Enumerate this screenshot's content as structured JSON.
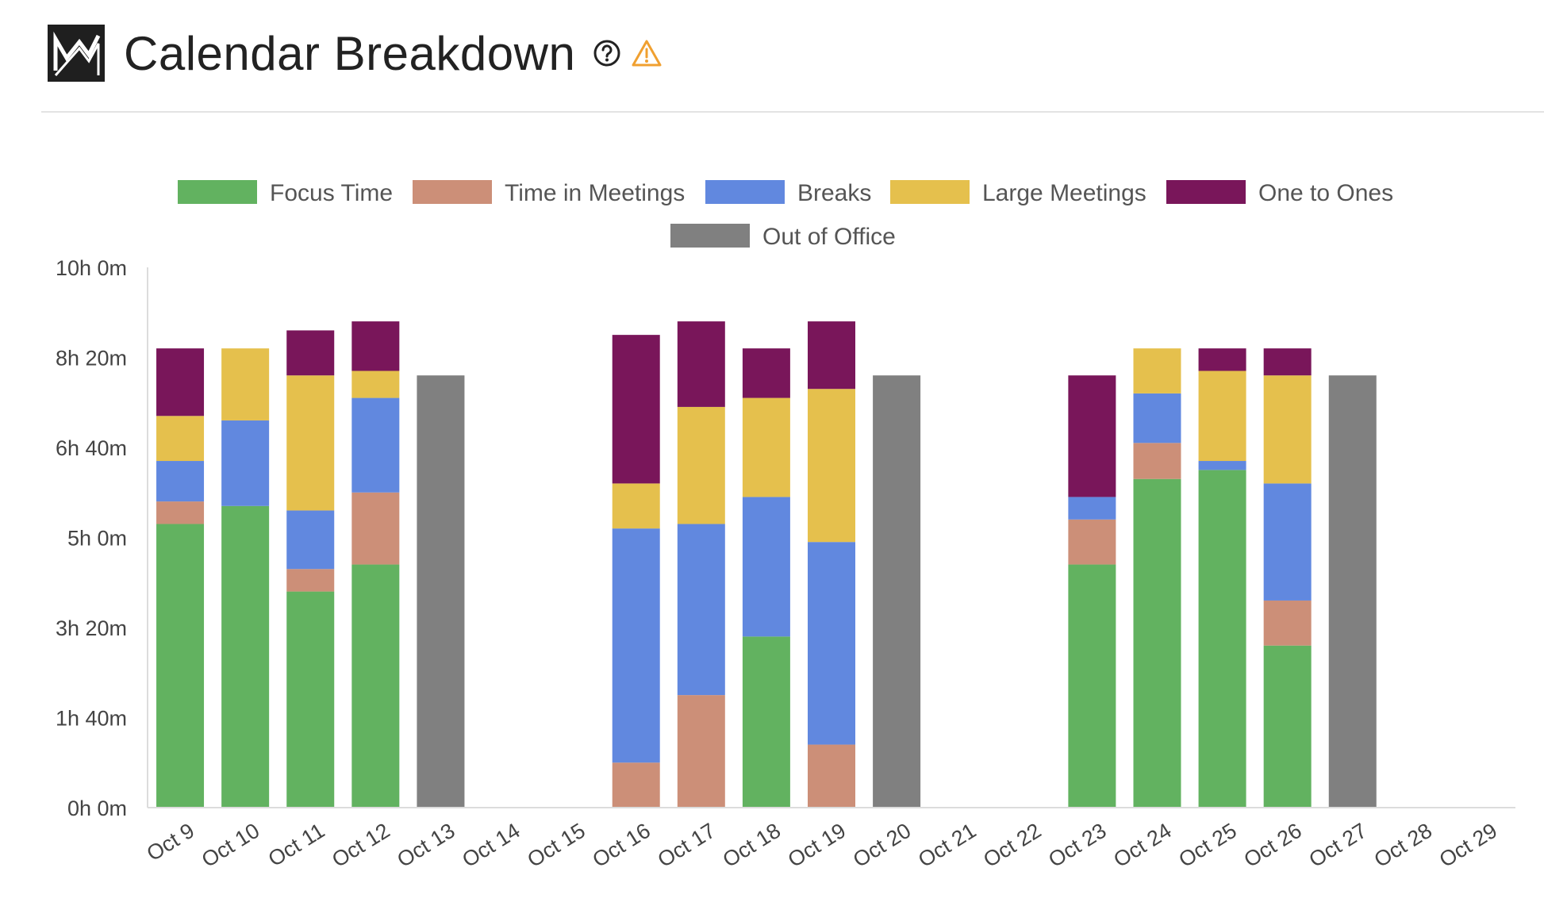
{
  "header": {
    "title": "Calendar Breakdown",
    "logo_icon": "line-chart-icon",
    "help_icon": "help-circle-icon",
    "warning_icon": "warning-triangle-icon",
    "warning_color": "#f0a030"
  },
  "chart_data": {
    "type": "bar",
    "stacked": true,
    "title": "Calendar Breakdown",
    "xlabel": "",
    "ylabel": "",
    "ylim_minutes": [
      0,
      600
    ],
    "y_ticks": [
      "0h 0m",
      "1h 40m",
      "3h 20m",
      "5h 0m",
      "6h 40m",
      "8h 20m",
      "10h 0m"
    ],
    "legend_position": "top",
    "grid": false,
    "categories": [
      "Oct 9",
      "Oct 10",
      "Oct 11",
      "Oct 12",
      "Oct 13",
      "Oct 14",
      "Oct 15",
      "Oct 16",
      "Oct 17",
      "Oct 18",
      "Oct 19",
      "Oct 20",
      "Oct 21",
      "Oct 22",
      "Oct 23",
      "Oct 24",
      "Oct 25",
      "Oct 26",
      "Oct 27",
      "Oct 28",
      "Oct 29"
    ],
    "series": [
      {
        "name": "Focus Time",
        "color": "#62b260",
        "values": [
          315,
          335,
          240,
          270,
          0,
          0,
          0,
          0,
          0,
          190,
          0,
          0,
          0,
          0,
          270,
          365,
          375,
          180,
          0,
          0,
          0
        ]
      },
      {
        "name": "Time in Meetings",
        "color": "#cc8f78",
        "values": [
          25,
          0,
          25,
          80,
          0,
          0,
          0,
          50,
          125,
          0,
          70,
          0,
          0,
          0,
          50,
          40,
          0,
          50,
          0,
          0,
          0
        ]
      },
      {
        "name": "Breaks",
        "color": "#6188df",
        "values": [
          45,
          95,
          65,
          105,
          0,
          0,
          0,
          260,
          190,
          155,
          225,
          0,
          0,
          0,
          25,
          55,
          10,
          130,
          0,
          0,
          0
        ]
      },
      {
        "name": "Large Meetings",
        "color": "#e5c04d",
        "values": [
          50,
          80,
          150,
          30,
          0,
          0,
          0,
          50,
          130,
          110,
          170,
          0,
          0,
          0,
          0,
          50,
          100,
          120,
          0,
          0,
          0
        ]
      },
      {
        "name": "One to Ones",
        "color": "#79165a",
        "values": [
          75,
          0,
          50,
          55,
          0,
          0,
          0,
          165,
          95,
          55,
          75,
          0,
          0,
          0,
          135,
          0,
          25,
          30,
          0,
          0,
          0
        ]
      },
      {
        "name": "Out of Office",
        "color": "#808080",
        "values": [
          0,
          0,
          0,
          0,
          480,
          0,
          0,
          0,
          0,
          0,
          0,
          480,
          0,
          0,
          0,
          0,
          0,
          0,
          480,
          0,
          0
        ]
      }
    ]
  }
}
